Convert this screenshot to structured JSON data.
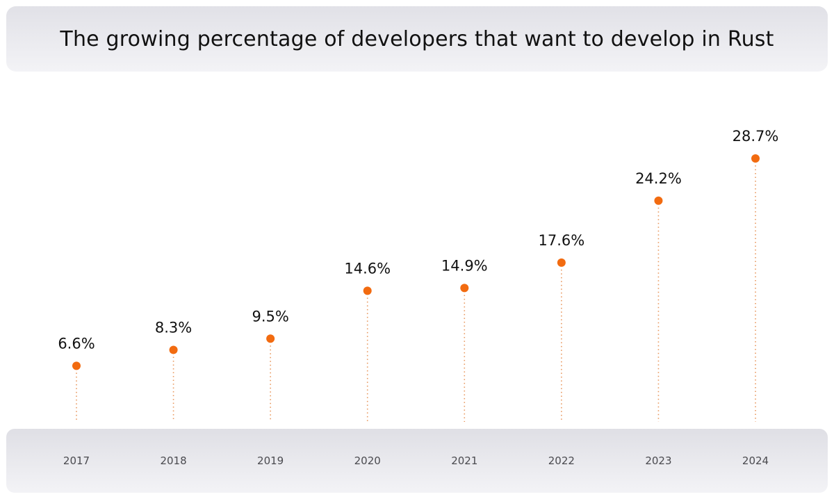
{
  "title": "The growing percentage of developers that want to develop in Rust",
  "colors": {
    "dot": "#f26b10",
    "stem": "#e8955a",
    "value_text": "#111111",
    "year_text": "#4a4a4f"
  },
  "chart_data": {
    "type": "scatter",
    "title": "The growing percentage of developers that want to develop in Rust",
    "xlabel": "",
    "ylabel": "",
    "categories": [
      "2017",
      "2018",
      "2019",
      "2020",
      "2021",
      "2022",
      "2023",
      "2024"
    ],
    "values": [
      6.6,
      8.3,
      9.5,
      14.6,
      14.9,
      17.6,
      24.2,
      28.7
    ],
    "value_labels": [
      "6.6%",
      "8.3%",
      "9.5%",
      "14.6%",
      "14.9%",
      "17.6%",
      "24.2%",
      "28.7%"
    ],
    "unit": "%",
    "ylim": [
      0,
      30
    ],
    "grid": false,
    "legend": "none",
    "style": "lollipop with dotted stems"
  }
}
